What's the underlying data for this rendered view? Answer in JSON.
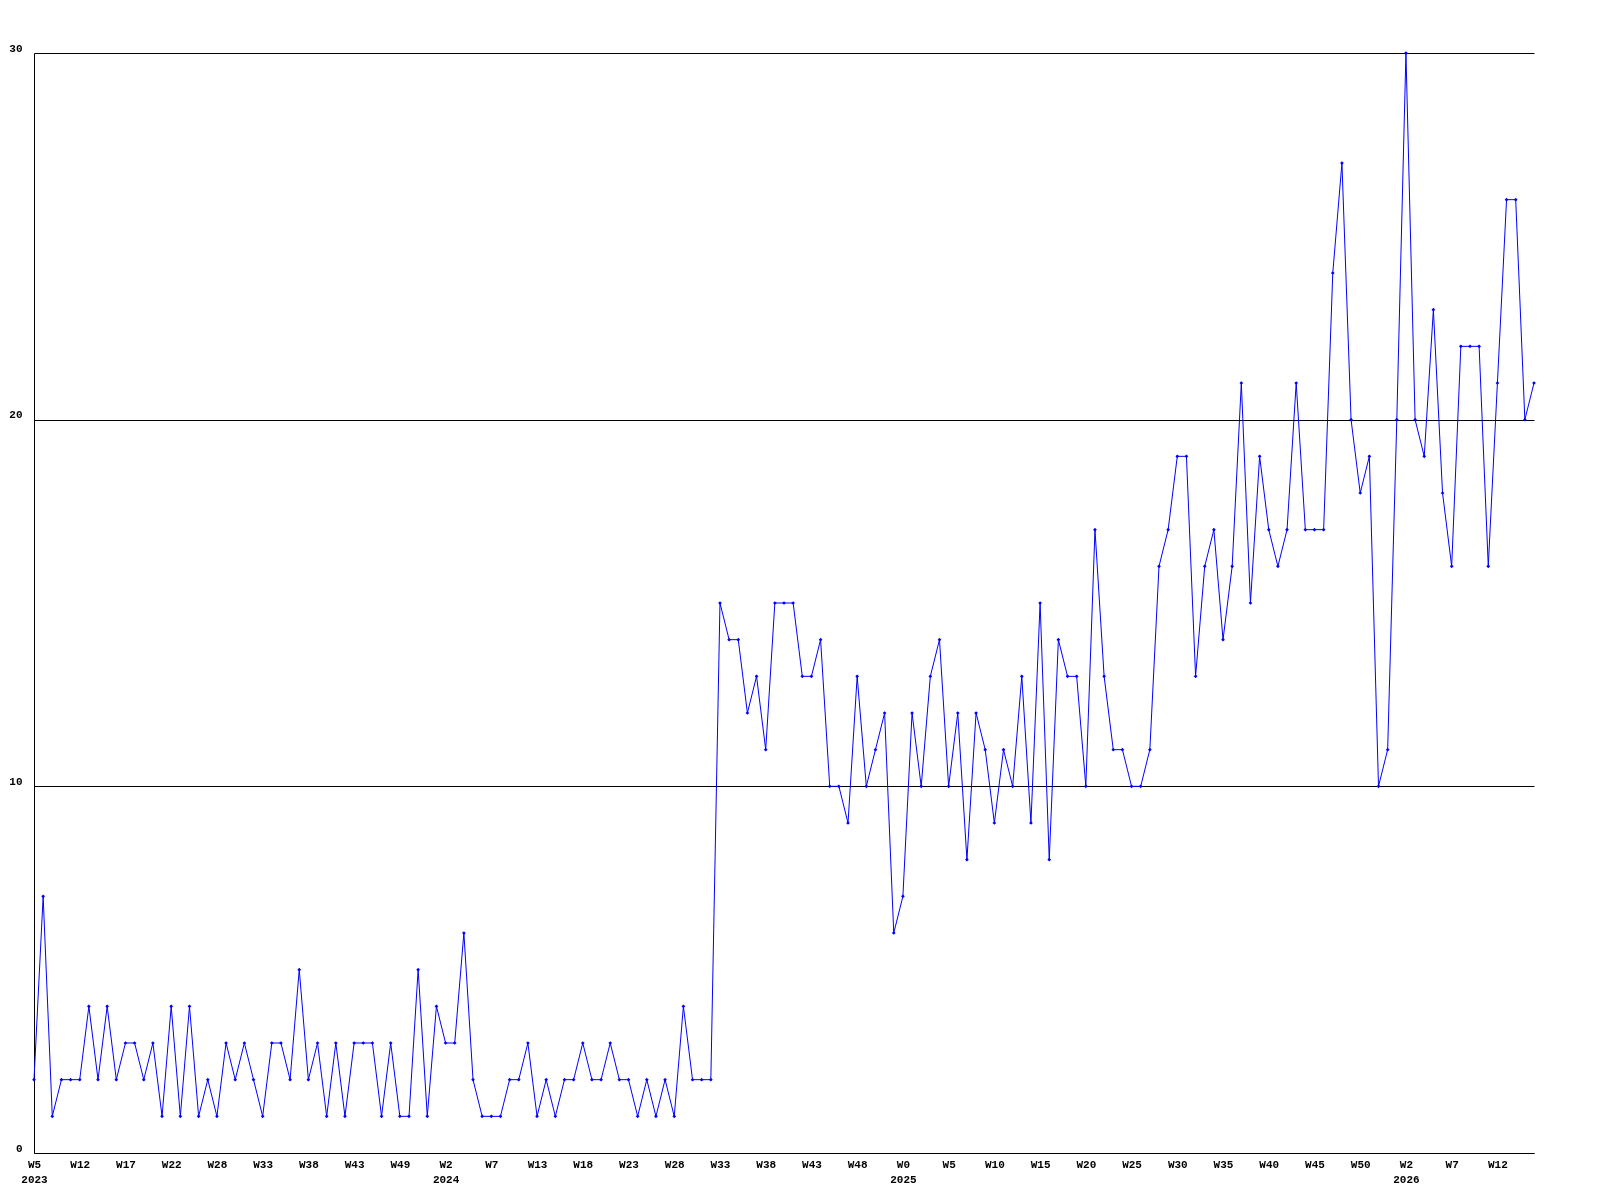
{
  "chart_data": {
    "type": "line",
    "categories": [
      "W5\n2023",
      null,
      null,
      null,
      null,
      "W12",
      null,
      null,
      null,
      null,
      "W17",
      null,
      null,
      null,
      null,
      "W22",
      null,
      null,
      null,
      null,
      "W28",
      null,
      null,
      null,
      null,
      "W33",
      null,
      null,
      null,
      null,
      "W38",
      null,
      null,
      null,
      null,
      "W43",
      null,
      null,
      null,
      null,
      "W49",
      null,
      null,
      null,
      null,
      "W2\n2024",
      null,
      null,
      null,
      null,
      "W7",
      null,
      null,
      null,
      null,
      "W13",
      null,
      null,
      null,
      null,
      "W18",
      null,
      null,
      null,
      null,
      "W23",
      null,
      null,
      null,
      null,
      "W28",
      null,
      null,
      null,
      null,
      "W33",
      null,
      null,
      null,
      null,
      "W38",
      null,
      null,
      null,
      null,
      "W43",
      null,
      null,
      null,
      null,
      "W48",
      null,
      null,
      null,
      null,
      "W0\n2025",
      null,
      null,
      null,
      null,
      "W5",
      null,
      null,
      null,
      null,
      "W10",
      null,
      null,
      null,
      null,
      "W15",
      null,
      null,
      null,
      null,
      "W20",
      null,
      null,
      null,
      null,
      "W25",
      null,
      null,
      null,
      null,
      "W30",
      null,
      null,
      null,
      null,
      "W35",
      null,
      null,
      null,
      null,
      "W40",
      null,
      null,
      null,
      null,
      "W45",
      null,
      null,
      null,
      null,
      "W50",
      null,
      null,
      null,
      null,
      "W2\n2026",
      null,
      null,
      null,
      null,
      "W7",
      null,
      null,
      null,
      null,
      "W12",
      null,
      null,
      null,
      null
    ],
    "series": [
      {
        "color": "#0000ff",
        "values": [
          2,
          7,
          1,
          2,
          2,
          2,
          4,
          2,
          4,
          2,
          3,
          3,
          2,
          3,
          1,
          4,
          1,
          4,
          1,
          2,
          1,
          3,
          2,
          3,
          2,
          1,
          3,
          3,
          2,
          5,
          2,
          3,
          1,
          3,
          1,
          3,
          3,
          3,
          1,
          3,
          1,
          1,
          5,
          1,
          4,
          3,
          3,
          6,
          2,
          1,
          1,
          1,
          2,
          2,
          3,
          1,
          2,
          1,
          2,
          2,
          3,
          2,
          2,
          3,
          2,
          2,
          1,
          2,
          1,
          2,
          1,
          4,
          2,
          2,
          2,
          15,
          14,
          14,
          12,
          13,
          11,
          15,
          15,
          15,
          13,
          13,
          14,
          10,
          10,
          9,
          13,
          10,
          11,
          12,
          6,
          7,
          12,
          10,
          13,
          14,
          10,
          12,
          8,
          12,
          11,
          9,
          11,
          10,
          13,
          9,
          15,
          8,
          14,
          13,
          13,
          10,
          17,
          13,
          11,
          11,
          10,
          10,
          11,
          16,
          17,
          19,
          19,
          13,
          16,
          17,
          14,
          16,
          21,
          15,
          19,
          17,
          16,
          17,
          21,
          17,
          17,
          17,
          24,
          27,
          20,
          18,
          19,
          10,
          11,
          20,
          30,
          20,
          19,
          23,
          18,
          16,
          22,
          22,
          22,
          16,
          21,
          26,
          26,
          20,
          21
        ]
      }
    ],
    "ylim": [
      0,
      30
    ],
    "yticks": [
      0,
      10,
      20,
      30
    ],
    "grid": "y",
    "marker": "diamond",
    "line_style": "solid"
  }
}
